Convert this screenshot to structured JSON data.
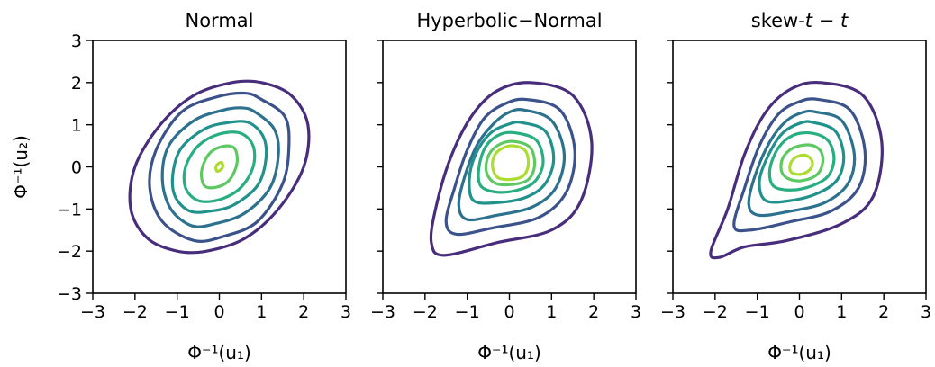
{
  "chart_data": [
    {
      "type": "contour",
      "title": "Normal",
      "title_parts": [
        {
          "t": "Normal",
          "i": false
        }
      ],
      "xlabel": "Φ⁻¹(u₁)",
      "ylabel": "Φ⁻¹(u₂)",
      "xlim": [
        -3,
        3
      ],
      "ylim": [
        -3,
        3
      ],
      "xticks": [
        -3,
        -2,
        -1,
        0,
        1,
        2,
        3
      ],
      "yticks": [
        -3,
        -2,
        -1,
        0,
        1,
        2,
        3
      ],
      "grid": false,
      "contours": [
        {
          "color": "#472d7b",
          "points": [
            [
              1.0,
              2.0
            ],
            [
              1.7,
              1.7
            ],
            [
              2.1,
              1.0
            ],
            [
              2.0,
              0.0
            ],
            [
              1.4,
              -1.0
            ],
            [
              0.6,
              -1.7
            ],
            [
              -0.3,
              -2.0
            ],
            [
              -1.0,
              -2.0
            ],
            [
              -1.7,
              -1.7
            ],
            [
              -2.1,
              -1.0
            ],
            [
              -2.0,
              0.0
            ],
            [
              -1.4,
              1.0
            ],
            [
              -0.6,
              1.7
            ],
            [
              0.3,
              2.0
            ]
          ]
        },
        {
          "color": "#3b528b",
          "points": [
            [
              1.0,
              1.6
            ],
            [
              1.55,
              1.2
            ],
            [
              1.65,
              0.5
            ],
            [
              1.5,
              -0.4
            ],
            [
              0.9,
              -1.3
            ],
            [
              0.1,
              -1.65
            ],
            [
              -0.6,
              -1.75
            ],
            [
              -1.35,
              -1.3
            ],
            [
              -1.65,
              -0.5
            ],
            [
              -1.5,
              0.4
            ],
            [
              -0.9,
              1.3
            ],
            [
              -0.1,
              1.65
            ],
            [
              0.6,
              1.75
            ]
          ]
        },
        {
          "color": "#2c728e",
          "points": [
            [
              0.85,
              1.3
            ],
            [
              1.3,
              0.9
            ],
            [
              1.4,
              0.3
            ],
            [
              1.2,
              -0.5
            ],
            [
              0.6,
              -1.1
            ],
            [
              -0.1,
              -1.35
            ],
            [
              -0.65,
              -1.4
            ],
            [
              -1.15,
              -1.0
            ],
            [
              -1.35,
              -0.3
            ],
            [
              -1.2,
              0.5
            ],
            [
              -0.6,
              1.1
            ],
            [
              0.1,
              1.35
            ],
            [
              0.55,
              1.4
            ]
          ]
        },
        {
          "color": "#21918c",
          "points": [
            [
              0.7,
              1.05
            ],
            [
              1.05,
              0.7
            ],
            [
              1.1,
              0.15
            ],
            [
              0.9,
              -0.45
            ],
            [
              0.35,
              -0.9
            ],
            [
              -0.2,
              -1.05
            ],
            [
              -0.7,
              -1.05
            ],
            [
              -1.05,
              -0.7
            ],
            [
              -1.1,
              -0.15
            ],
            [
              -0.9,
              0.45
            ],
            [
              -0.35,
              0.9
            ],
            [
              0.2,
              1.05
            ]
          ]
        },
        {
          "color": "#28ae80",
          "points": [
            [
              0.5,
              0.8
            ],
            [
              0.8,
              0.5
            ],
            [
              0.8,
              0.0
            ],
            [
              0.5,
              -0.5
            ],
            [
              0.0,
              -0.78
            ],
            [
              -0.5,
              -0.8
            ],
            [
              -0.8,
              -0.5
            ],
            [
              -0.8,
              0.0
            ],
            [
              -0.5,
              0.5
            ],
            [
              0.0,
              0.78
            ]
          ]
        },
        {
          "color": "#5ec962",
          "points": [
            [
              0.35,
              0.45
            ],
            [
              0.42,
              0.1
            ],
            [
              0.25,
              -0.3
            ],
            [
              -0.05,
              -0.48
            ],
            [
              -0.35,
              -0.45
            ],
            [
              -0.42,
              -0.1
            ],
            [
              -0.25,
              0.3
            ],
            [
              0.05,
              0.48
            ]
          ]
        },
        {
          "color": "#addc30",
          "points": [
            [
              0.06,
              0.1
            ],
            [
              0.08,
              0.0
            ],
            [
              0.02,
              -0.08
            ],
            [
              -0.06,
              -0.1
            ],
            [
              -0.08,
              0.0
            ],
            [
              -0.02,
              0.08
            ]
          ]
        }
      ]
    },
    {
      "type": "contour",
      "title": "Hyperbolic−Normal",
      "title_parts": [
        {
          "t": "Hyperbolic−Normal",
          "i": false
        }
      ],
      "xlabel": "Φ⁻¹(u₁)",
      "ylabel": "",
      "xlim": [
        -3,
        3
      ],
      "ylim": [
        -3,
        3
      ],
      "xticks": [
        -3,
        -2,
        -1,
        0,
        1,
        2,
        3
      ],
      "yticks": [
        -3,
        -2,
        -1,
        0,
        1,
        2,
        3
      ],
      "grid": false,
      "contours": [
        {
          "color": "#472d7b",
          "points": [
            [
              0.5,
              2.0
            ],
            [
              1.5,
              1.7
            ],
            [
              1.95,
              0.6
            ],
            [
              1.7,
              -0.8
            ],
            [
              1.0,
              -1.5
            ],
            [
              -0.3,
              -1.8
            ],
            [
              -1.55,
              -2.1
            ],
            [
              -1.85,
              -1.8
            ],
            [
              -1.75,
              -1.0
            ],
            [
              -1.4,
              0.2
            ],
            [
              -0.9,
              1.2
            ],
            [
              -0.3,
              1.8
            ]
          ]
        },
        {
          "color": "#3b528b",
          "points": [
            [
              0.4,
              1.6
            ],
            [
              1.2,
              1.35
            ],
            [
              1.55,
              0.4
            ],
            [
              1.35,
              -0.6
            ],
            [
              0.7,
              -1.2
            ],
            [
              -0.4,
              -1.45
            ],
            [
              -1.25,
              -1.6
            ],
            [
              -1.5,
              -1.3
            ],
            [
              -1.3,
              -0.5
            ],
            [
              -1.0,
              0.4
            ],
            [
              -0.6,
              1.15
            ],
            [
              -0.1,
              1.5
            ]
          ]
        },
        {
          "color": "#2c728e",
          "points": [
            [
              0.35,
              1.35
            ],
            [
              1.0,
              1.1
            ],
            [
              1.3,
              0.3
            ],
            [
              1.1,
              -0.5
            ],
            [
              0.55,
              -0.95
            ],
            [
              -0.3,
              -1.15
            ],
            [
              -1.0,
              -1.25
            ],
            [
              -1.2,
              -0.9
            ],
            [
              -1.05,
              -0.2
            ],
            [
              -0.75,
              0.55
            ],
            [
              -0.35,
              1.05
            ],
            [
              0.0,
              1.3
            ]
          ]
        },
        {
          "color": "#21918c",
          "points": [
            [
              0.3,
              1.05
            ],
            [
              0.85,
              0.85
            ],
            [
              1.05,
              0.2
            ],
            [
              0.85,
              -0.4
            ],
            [
              0.4,
              -0.72
            ],
            [
              -0.3,
              -0.85
            ],
            [
              -0.85,
              -0.8
            ],
            [
              -0.95,
              -0.3
            ],
            [
              -0.8,
              0.3
            ],
            [
              -0.45,
              0.8
            ],
            [
              0.0,
              1.02
            ]
          ]
        },
        {
          "color": "#28ae80",
          "points": [
            [
              0.2,
              0.8
            ],
            [
              0.65,
              0.62
            ],
            [
              0.8,
              0.1
            ],
            [
              0.6,
              -0.35
            ],
            [
              0.2,
              -0.55
            ],
            [
              -0.3,
              -0.6
            ],
            [
              -0.68,
              -0.45
            ],
            [
              -0.72,
              0.0
            ],
            [
              -0.55,
              0.5
            ],
            [
              -0.2,
              0.78
            ]
          ]
        },
        {
          "color": "#5ec962",
          "points": [
            [
              0.15,
              0.6
            ],
            [
              0.5,
              0.45
            ],
            [
              0.6,
              0.05
            ],
            [
              0.45,
              -0.3
            ],
            [
              0.05,
              -0.42
            ],
            [
              -0.35,
              -0.38
            ],
            [
              -0.55,
              -0.1
            ],
            [
              -0.48,
              0.3
            ],
            [
              -0.2,
              0.55
            ]
          ]
        },
        {
          "color": "#addc30",
          "points": [
            [
              0.1,
              0.5
            ],
            [
              0.38,
              0.38
            ],
            [
              0.45,
              0.05
            ],
            [
              0.32,
              -0.22
            ],
            [
              0.0,
              -0.3
            ],
            [
              -0.28,
              -0.25
            ],
            [
              -0.4,
              0.0
            ],
            [
              -0.35,
              0.28
            ],
            [
              -0.15,
              0.45
            ]
          ]
        }
      ]
    },
    {
      "type": "contour",
      "title": "skew-t − t",
      "title_parts": [
        {
          "t": "skew-",
          "i": false
        },
        {
          "t": "t",
          "i": true
        },
        {
          "t": " − ",
          "i": false
        },
        {
          "t": "t",
          "i": true
        }
      ],
      "xlabel": "Φ⁻¹(u₁)",
      "ylabel": "",
      "xlim": [
        -3,
        3
      ],
      "ylim": [
        -3,
        3
      ],
      "xticks": [
        -3,
        -2,
        -1,
        0,
        1,
        2,
        3
      ],
      "yticks": [
        -3,
        -2,
        -1,
        0,
        1,
        2,
        3
      ],
      "grid": false,
      "contours": [
        {
          "color": "#472d7b",
          "points": [
            [
              0.5,
              2.0
            ],
            [
              1.5,
              1.7
            ],
            [
              1.95,
              0.6
            ],
            [
              1.75,
              -0.7
            ],
            [
              1.0,
              -1.35
            ],
            [
              -0.3,
              -1.75
            ],
            [
              -1.3,
              -1.9
            ],
            [
              -1.9,
              -2.15
            ],
            [
              -2.1,
              -2.0
            ],
            [
              -1.7,
              -1.0
            ],
            [
              -1.3,
              0.3
            ],
            [
              -0.8,
              1.3
            ],
            [
              -0.2,
              1.85
            ]
          ]
        },
        {
          "color": "#3b528b",
          "points": [
            [
              0.45,
              1.6
            ],
            [
              1.2,
              1.35
            ],
            [
              1.55,
              0.4
            ],
            [
              1.4,
              -0.5
            ],
            [
              0.75,
              -1.05
            ],
            [
              -0.2,
              -1.3
            ],
            [
              -1.15,
              -1.5
            ],
            [
              -1.55,
              -1.4
            ],
            [
              -1.3,
              -0.5
            ],
            [
              -0.95,
              0.5
            ],
            [
              -0.5,
              1.25
            ],
            [
              0.0,
              1.55
            ]
          ]
        },
        {
          "color": "#2c728e",
          "points": [
            [
              0.4,
              1.3
            ],
            [
              1.0,
              1.1
            ],
            [
              1.3,
              0.3
            ],
            [
              1.15,
              -0.4
            ],
            [
              0.6,
              -0.85
            ],
            [
              -0.2,
              -1.05
            ],
            [
              -0.95,
              -1.15
            ],
            [
              -1.2,
              -0.9
            ],
            [
              -1.05,
              -0.2
            ],
            [
              -0.7,
              0.6
            ],
            [
              -0.3,
              1.1
            ],
            [
              0.1,
              1.3
            ]
          ]
        },
        {
          "color": "#21918c",
          "points": [
            [
              0.35,
              1.05
            ],
            [
              0.85,
              0.85
            ],
            [
              1.05,
              0.25
            ],
            [
              0.9,
              -0.3
            ],
            [
              0.45,
              -0.62
            ],
            [
              -0.2,
              -0.8
            ],
            [
              -0.8,
              -0.8
            ],
            [
              -0.95,
              -0.35
            ],
            [
              -0.75,
              0.25
            ],
            [
              -0.4,
              0.8
            ],
            [
              0.05,
              1.05
            ]
          ]
        },
        {
          "color": "#28ae80",
          "points": [
            [
              0.3,
              0.8
            ],
            [
              0.68,
              0.62
            ],
            [
              0.82,
              0.2
            ],
            [
              0.68,
              -0.22
            ],
            [
              0.3,
              -0.45
            ],
            [
              -0.2,
              -0.55
            ],
            [
              -0.62,
              -0.45
            ],
            [
              -0.7,
              -0.05
            ],
            [
              -0.5,
              0.45
            ],
            [
              -0.15,
              0.75
            ]
          ]
        },
        {
          "color": "#5ec962",
          "points": [
            [
              0.25,
              0.52
            ],
            [
              0.5,
              0.38
            ],
            [
              0.55,
              0.1
            ],
            [
              0.42,
              -0.18
            ],
            [
              0.1,
              -0.32
            ],
            [
              -0.22,
              -0.3
            ],
            [
              -0.42,
              -0.12
            ],
            [
              -0.4,
              0.2
            ],
            [
              -0.15,
              0.45
            ]
          ]
        },
        {
          "color": "#addc30",
          "points": [
            [
              0.12,
              0.28
            ],
            [
              0.28,
              0.18
            ],
            [
              0.3,
              0.02
            ],
            [
              0.18,
              -0.12
            ],
            [
              -0.02,
              -0.18
            ],
            [
              -0.2,
              -0.12
            ],
            [
              -0.22,
              0.05
            ],
            [
              -0.1,
              0.22
            ]
          ]
        }
      ]
    }
  ]
}
